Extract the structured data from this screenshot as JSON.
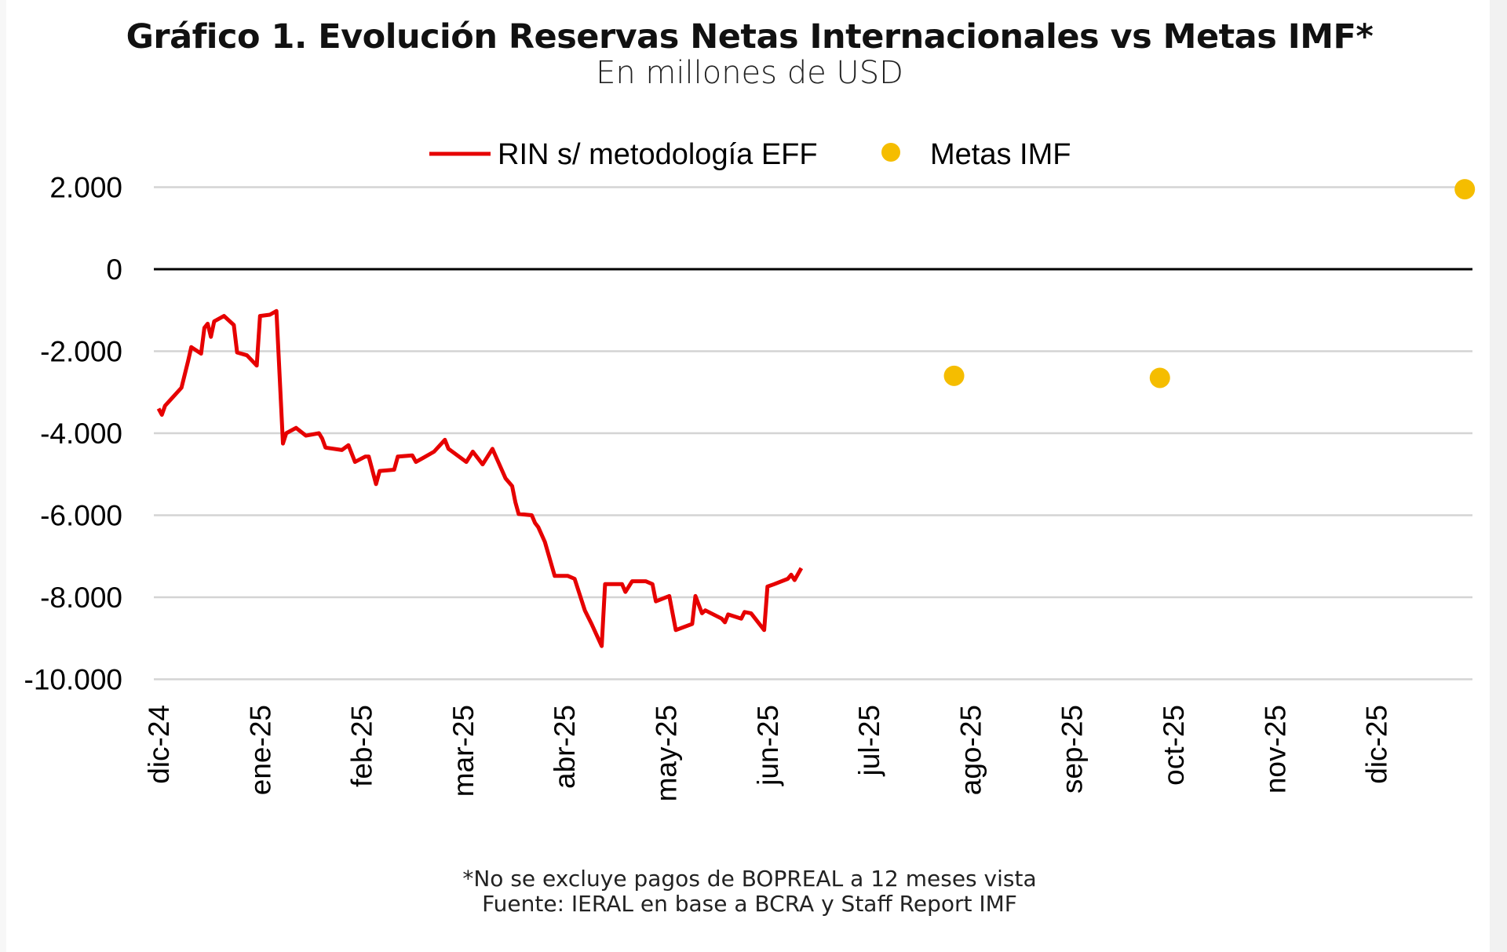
{
  "chart_data": {
    "type": "line",
    "title": "Gráfico 1. Evolución Reservas Netas Internacionales vs Metas IMF*",
    "subtitle": "En millones de USD",
    "xlabel": "",
    "ylabel": "",
    "ylim": [
      -10000,
      2000
    ],
    "yticks": [
      2000,
      0,
      -2000,
      -4000,
      -6000,
      -8000,
      -10000
    ],
    "ytick_labels": [
      "2.000",
      "0",
      "-2.000",
      "-4.000",
      "-6.000",
      "-8.000",
      "-10.000"
    ],
    "xtick_labels": [
      "dic-24",
      "ene-25",
      "feb-25",
      "mar-25",
      "abr-25",
      "may-25",
      "jun-25",
      "jul-25",
      "ago-25",
      "sep-25",
      "oct-25",
      "nov-25",
      "dic-25"
    ],
    "grid": true,
    "legend_position": "top",
    "series": [
      {
        "name": "RIN s/ metodología EFF",
        "type": "line",
        "color": "#e60000",
        "points": [
          [
            "2024-12-01",
            -3400
          ],
          [
            "2024-12-02",
            -3550
          ],
          [
            "2024-12-03",
            -3330
          ],
          [
            "2024-12-08",
            -2890
          ],
          [
            "2024-12-10",
            -2250
          ],
          [
            "2024-12-11",
            -1900
          ],
          [
            "2024-12-14",
            -2060
          ],
          [
            "2024-12-15",
            -1430
          ],
          [
            "2024-12-16",
            -1330
          ],
          [
            "2024-12-17",
            -1650
          ],
          [
            "2024-12-18",
            -1270
          ],
          [
            "2024-12-21",
            -1140
          ],
          [
            "2024-12-24",
            -1360
          ],
          [
            "2024-12-25",
            -2030
          ],
          [
            "2024-12-28",
            -2100
          ],
          [
            "2024-12-31",
            -2350
          ],
          [
            "2025-01-01",
            -1140
          ],
          [
            "2025-01-04",
            -1110
          ],
          [
            "2025-01-06",
            -1020
          ],
          [
            "2025-01-08",
            -4250
          ],
          [
            "2025-01-09",
            -4000
          ],
          [
            "2025-01-12",
            -3870
          ],
          [
            "2025-01-15",
            -4060
          ],
          [
            "2025-01-19",
            -4000
          ],
          [
            "2025-01-20",
            -4130
          ],
          [
            "2025-01-21",
            -4350
          ],
          [
            "2025-01-26",
            -4410
          ],
          [
            "2025-01-28",
            -4290
          ],
          [
            "2025-01-30",
            -4700
          ],
          [
            "2025-02-02",
            -4570
          ],
          [
            "2025-02-03",
            -4570
          ],
          [
            "2025-02-05",
            -5240
          ],
          [
            "2025-02-06",
            -4920
          ],
          [
            "2025-02-10",
            -4890
          ],
          [
            "2025-02-11",
            -4570
          ],
          [
            "2025-02-15",
            -4540
          ],
          [
            "2025-02-16",
            -4700
          ],
          [
            "2025-02-18",
            -4600
          ],
          [
            "2025-02-21",
            -4450
          ],
          [
            "2025-02-24",
            -4160
          ],
          [
            "2025-02-25",
            -4380
          ],
          [
            "2025-03-02",
            -4700
          ],
          [
            "2025-03-04",
            -4450
          ],
          [
            "2025-03-07",
            -4760
          ],
          [
            "2025-03-10",
            -4380
          ],
          [
            "2025-03-14",
            -5100
          ],
          [
            "2025-03-16",
            -5290
          ],
          [
            "2025-03-17",
            -5680
          ],
          [
            "2025-03-18",
            -5970
          ],
          [
            "2025-03-22",
            -6000
          ],
          [
            "2025-03-23",
            -6190
          ],
          [
            "2025-03-24",
            -6290
          ],
          [
            "2025-03-26",
            -6650
          ],
          [
            "2025-03-29",
            -7480
          ],
          [
            "2025-04-02",
            -7480
          ],
          [
            "2025-04-04",
            -7550
          ],
          [
            "2025-04-07",
            -8320
          ],
          [
            "2025-04-09",
            -8650
          ],
          [
            "2025-04-12",
            -9190
          ],
          [
            "2025-04-13",
            -7680
          ],
          [
            "2025-04-18",
            -7680
          ],
          [
            "2025-04-19",
            -7870
          ],
          [
            "2025-04-21",
            -7610
          ],
          [
            "2025-04-25",
            -7610
          ],
          [
            "2025-04-27",
            -7680
          ],
          [
            "2025-04-28",
            -8100
          ],
          [
            "2025-05-02",
            -7970
          ],
          [
            "2025-05-04",
            -8800
          ],
          [
            "2025-05-09",
            -8650
          ],
          [
            "2025-05-10",
            -7970
          ],
          [
            "2025-05-12",
            -8390
          ],
          [
            "2025-05-13",
            -8320
          ],
          [
            "2025-05-18",
            -8520
          ],
          [
            "2025-05-19",
            -8610
          ],
          [
            "2025-05-20",
            -8420
          ],
          [
            "2025-05-24",
            -8520
          ],
          [
            "2025-05-25",
            -8360
          ],
          [
            "2025-05-27",
            -8390
          ],
          [
            "2025-05-31",
            -8800
          ],
          [
            "2025-06-01",
            -7740
          ],
          [
            "2025-06-03",
            -7680
          ],
          [
            "2025-06-07",
            -7550
          ],
          [
            "2025-06-08",
            -7450
          ],
          [
            "2025-06-09",
            -7580
          ],
          [
            "2025-06-11",
            -7290
          ]
        ]
      },
      {
        "name": "Metas IMF",
        "type": "scatter",
        "color": "#f5bd00",
        "points": [
          [
            "2025-07-27",
            -2600
          ],
          [
            "2025-09-27",
            -2650
          ],
          [
            "2025-12-28",
            1950
          ]
        ]
      }
    ]
  },
  "footnotes": {
    "note": "*No se excluye pagos de BOPREAL a 12 meses vista",
    "source": "Fuente: IERAL en base a BCRA y Staff Report IMF"
  }
}
